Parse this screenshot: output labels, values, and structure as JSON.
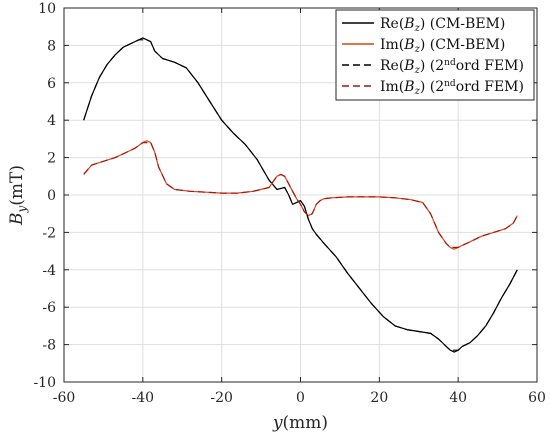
{
  "chart_data": {
    "type": "line",
    "title": "",
    "xlabel": {
      "var": "y",
      "unit": "(mm)"
    },
    "ylabel": {
      "var": "B",
      "sub": "y",
      "unit": "(mT)"
    },
    "xlim": [
      -60,
      60
    ],
    "ylim": [
      -10,
      10
    ],
    "xticks": [
      -60,
      -40,
      -20,
      0,
      20,
      40,
      60
    ],
    "yticks": [
      -10,
      -8,
      -6,
      -4,
      -2,
      0,
      2,
      4,
      6,
      8,
      10
    ],
    "grid": true,
    "legend_position": "top-right",
    "series": [
      {
        "name": "Re(Bz) (CM-BEM)",
        "legend": {
          "pre": "Re(",
          "var": "B",
          "sub": "z",
          "post": ") (CM-BEM)"
        },
        "color": "#000000",
        "dash": "solid",
        "x": [
          -55,
          -53,
          -51,
          -49,
          -47,
          -45,
          -43,
          -41,
          -40,
          -39,
          -38,
          -37,
          -35,
          -32,
          -29,
          -26,
          -23,
          -20,
          -17,
          -14,
          -11,
          -8,
          -6,
          -4,
          -3,
          -2,
          -1,
          0,
          1,
          2,
          3,
          4,
          6,
          9,
          12,
          15,
          18,
          21,
          24,
          27,
          30,
          33,
          35,
          37,
          38,
          39,
          40,
          41,
          43,
          45,
          47,
          49,
          51,
          53,
          55
        ],
        "y": [
          4.0,
          5.3,
          6.3,
          7.0,
          7.5,
          7.9,
          8.1,
          8.3,
          8.4,
          8.3,
          8.2,
          7.7,
          7.3,
          7.1,
          6.8,
          6.0,
          5.0,
          4.0,
          3.3,
          2.7,
          1.9,
          0.8,
          0.3,
          0.4,
          0.0,
          -0.5,
          -0.4,
          -0.3,
          -0.6,
          -1.3,
          -1.8,
          -2.1,
          -2.6,
          -3.3,
          -4.2,
          -5.0,
          -5.8,
          -6.5,
          -7.0,
          -7.2,
          -7.3,
          -7.4,
          -7.7,
          -8.1,
          -8.3,
          -8.4,
          -8.3,
          -8.1,
          -7.9,
          -7.5,
          -7.0,
          -6.3,
          -5.5,
          -4.8,
          -4.0
        ]
      },
      {
        "name": "Im(Bz) (CM-BEM)",
        "legend": {
          "pre": "Im(",
          "var": "B",
          "sub": "z",
          "post": ") (CM-BEM)"
        },
        "color": "#d9480f",
        "dash": "solid",
        "x": [
          -55,
          -53,
          -50,
          -47,
          -44,
          -42,
          -40,
          -39,
          -38,
          -37,
          -36,
          -34,
          -32,
          -28,
          -24,
          -20,
          -16,
          -12,
          -8,
          -6,
          -5,
          -4,
          -3,
          -2,
          -1,
          0,
          1,
          2,
          3,
          4,
          5,
          6,
          8,
          12,
          16,
          20,
          24,
          28,
          31,
          33,
          35,
          37,
          38,
          39,
          40,
          41,
          43,
          46,
          49,
          52,
          54,
          55
        ],
        "y": [
          1.1,
          1.6,
          1.8,
          2.0,
          2.3,
          2.5,
          2.8,
          2.9,
          2.8,
          2.3,
          1.5,
          0.6,
          0.3,
          0.2,
          0.15,
          0.1,
          0.1,
          0.2,
          0.4,
          1.0,
          1.1,
          1.0,
          0.6,
          0.2,
          -0.2,
          -0.5,
          -0.9,
          -1.1,
          -1.0,
          -0.5,
          -0.3,
          -0.2,
          -0.15,
          -0.1,
          -0.1,
          -0.1,
          -0.15,
          -0.25,
          -0.4,
          -1.0,
          -2.0,
          -2.6,
          -2.8,
          -2.9,
          -2.8,
          -2.7,
          -2.5,
          -2.2,
          -2.0,
          -1.8,
          -1.5,
          -1.1
        ]
      },
      {
        "name": "Re(Bz) (2ndord FEM)",
        "legend": {
          "pre": "Re(",
          "var": "B",
          "sub": "z",
          "post": ") (2",
          "sup": "nd",
          "post2": "ord FEM)"
        },
        "color": "#000000",
        "dash": "dashed",
        "x": [
          -55,
          -53,
          -51,
          -49,
          -47,
          -45,
          -43,
          -41,
          -40,
          -39,
          -38,
          -37,
          -35,
          -32,
          -29,
          -26,
          -23,
          -20,
          -17,
          -14,
          -11,
          -8,
          -6,
          -4,
          -3,
          -2,
          -1,
          0,
          1,
          2,
          3,
          4,
          6,
          9,
          12,
          15,
          18,
          21,
          24,
          27,
          30,
          33,
          35,
          37,
          38,
          39,
          40,
          41,
          43,
          45,
          47,
          49,
          51,
          53,
          55
        ],
        "y": [
          4.0,
          5.3,
          6.3,
          7.0,
          7.5,
          7.9,
          8.1,
          8.3,
          8.3,
          8.3,
          8.2,
          7.7,
          7.3,
          7.1,
          6.8,
          6.0,
          5.0,
          4.0,
          3.3,
          2.7,
          1.9,
          0.8,
          0.3,
          0.4,
          0.0,
          -0.5,
          -0.4,
          -0.3,
          -0.6,
          -1.3,
          -1.8,
          -2.1,
          -2.6,
          -3.3,
          -4.2,
          -5.0,
          -5.8,
          -6.5,
          -7.0,
          -7.2,
          -7.3,
          -7.4,
          -7.7,
          -8.1,
          -8.3,
          -8.3,
          -8.3,
          -8.1,
          -7.9,
          -7.5,
          -7.0,
          -6.3,
          -5.5,
          -4.8,
          -4.0
        ]
      },
      {
        "name": "Im(Bz) (2ndord FEM)",
        "legend": {
          "pre": "Im(",
          "var": "B",
          "sub": "z",
          "post": ") (2",
          "sup": "nd",
          "post2": "ord FEM)"
        },
        "color": "#a31515",
        "dash": "dashed",
        "x": [
          -55,
          -53,
          -50,
          -47,
          -44,
          -42,
          -40,
          -39,
          -38,
          -37,
          -36,
          -34,
          -32,
          -28,
          -24,
          -20,
          -16,
          -12,
          -8,
          -6,
          -5,
          -4,
          -3,
          -2,
          -1,
          0,
          1,
          2,
          3,
          4,
          5,
          6,
          8,
          12,
          16,
          20,
          24,
          28,
          31,
          33,
          35,
          37,
          38,
          39,
          40,
          41,
          43,
          46,
          49,
          52,
          54,
          55
        ],
        "y": [
          1.1,
          1.6,
          1.8,
          2.0,
          2.3,
          2.5,
          2.8,
          2.8,
          2.8,
          2.3,
          1.5,
          0.6,
          0.3,
          0.2,
          0.15,
          0.1,
          0.1,
          0.2,
          0.4,
          1.0,
          1.1,
          1.0,
          0.6,
          0.2,
          -0.2,
          -0.5,
          -0.9,
          -1.1,
          -1.0,
          -0.5,
          -0.3,
          -0.2,
          -0.15,
          -0.1,
          -0.1,
          -0.1,
          -0.15,
          -0.25,
          -0.4,
          -1.0,
          -2.0,
          -2.6,
          -2.8,
          -2.8,
          -2.8,
          -2.7,
          -2.5,
          -2.2,
          -2.0,
          -1.8,
          -1.5,
          -1.1
        ]
      }
    ]
  }
}
